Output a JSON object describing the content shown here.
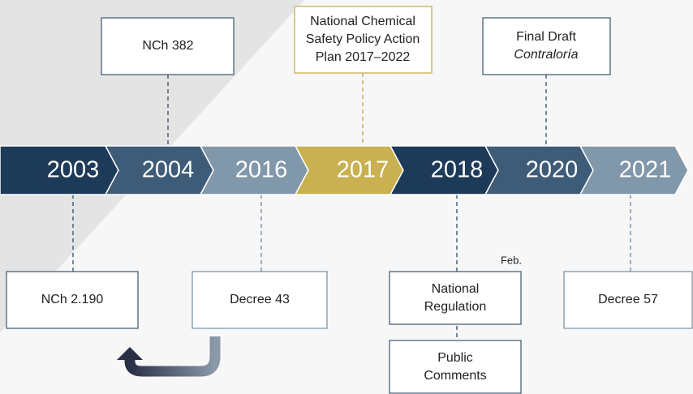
{
  "years": [
    "2003",
    "2004",
    "2016",
    "2017",
    "2018",
    "2020",
    "2021"
  ],
  "events_above": [
    {
      "lines": [
        "NCh 382"
      ]
    },
    {
      "lines": [
        "National Chemical",
        "Safety Policy Action",
        "Plan 2017–2022"
      ]
    },
    {
      "lines": [
        "Final Draft",
        "Contraloría"
      ]
    }
  ],
  "events_below": [
    {
      "lines": [
        "NCh 2.190"
      ]
    },
    {
      "lines": [
        "Decree 43"
      ]
    },
    {
      "lines": [
        "National",
        "Regulation"
      ],
      "note": "Feb."
    },
    {
      "lines": [
        "Public",
        "Comments"
      ]
    },
    {
      "lines": [
        "Decree 57"
      ]
    }
  ]
}
